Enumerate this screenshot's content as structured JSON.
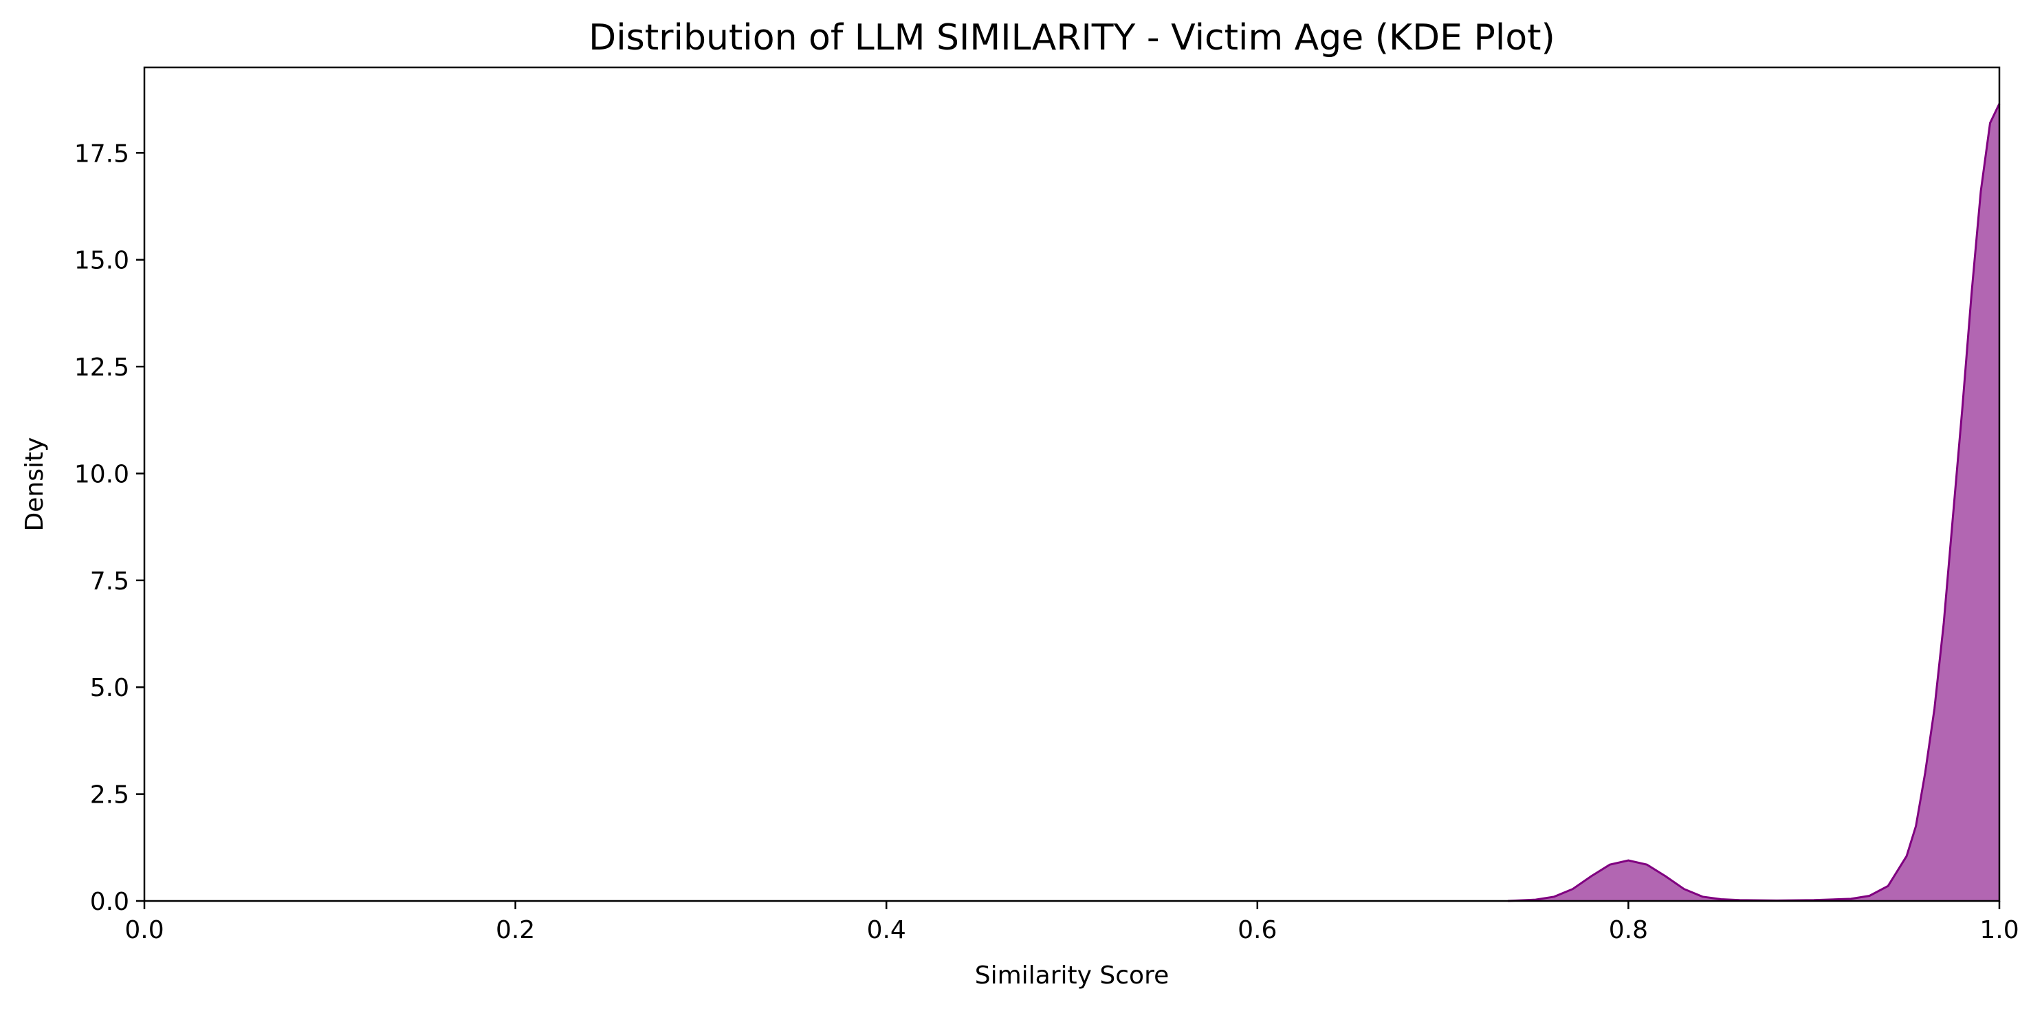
{
  "chart_data": {
    "type": "area",
    "title": "Distribution of LLM SIMILARITY - Victim Age (KDE Plot)",
    "xlabel": "Similarity Score",
    "ylabel": "Density",
    "xlim": [
      0.0,
      1.0
    ],
    "ylim": [
      0.0,
      19.5
    ],
    "xticks": [
      0.0,
      0.2,
      0.4,
      0.6,
      0.8,
      1.0
    ],
    "xtick_labels": [
      "0.0",
      "0.2",
      "0.4",
      "0.6",
      "0.8",
      "1.0"
    ],
    "yticks": [
      0.0,
      2.5,
      5.0,
      7.5,
      10.0,
      12.5,
      15.0,
      17.5
    ],
    "ytick_labels": [
      "0.0",
      "2.5",
      "5.0",
      "7.5",
      "10.0",
      "12.5",
      "15.0",
      "17.5"
    ],
    "grid": false,
    "series": [
      {
        "fill_color": "#b266b2",
        "line_color": "#800080",
        "x": [
          0.735,
          0.75,
          0.76,
          0.77,
          0.78,
          0.79,
          0.8,
          0.81,
          0.82,
          0.83,
          0.84,
          0.85,
          0.86,
          0.88,
          0.9,
          0.92,
          0.93,
          0.94,
          0.95,
          0.955,
          0.96,
          0.965,
          0.97,
          0.975,
          0.98,
          0.985,
          0.99,
          0.995,
          1.0
        ],
        "y": [
          0.0,
          0.03,
          0.1,
          0.28,
          0.58,
          0.85,
          0.95,
          0.85,
          0.58,
          0.28,
          0.1,
          0.04,
          0.02,
          0.01,
          0.02,
          0.05,
          0.12,
          0.35,
          1.05,
          1.75,
          3.0,
          4.5,
          6.5,
          9.0,
          11.5,
          14.2,
          16.6,
          18.2,
          18.65
        ]
      }
    ]
  }
}
